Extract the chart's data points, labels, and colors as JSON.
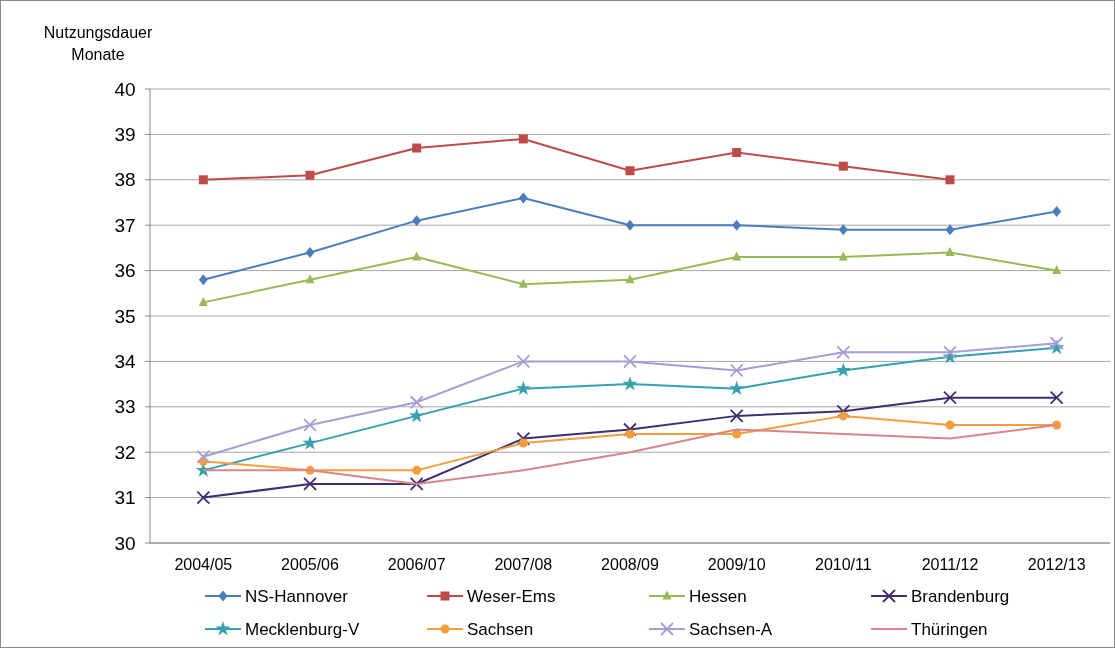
{
  "chart_data": {
    "type": "line",
    "ylabel": "Nutzungsdauer\nMonate",
    "categories": [
      "2004/05",
      "2005/06",
      "2006/07",
      "2007/08",
      "2008/09",
      "2009/10",
      "2010/11",
      "2011/12",
      "2012/13"
    ],
    "ylim": [
      30,
      40
    ],
    "yticks": [
      30,
      31,
      32,
      33,
      34,
      35,
      36,
      37,
      38,
      39,
      40
    ],
    "grid": "y",
    "legend": "bottom",
    "line_style": "solid",
    "series": [
      {
        "name": "NS-Hannover",
        "color": "#4a7ebb",
        "marker": "diamond",
        "values": [
          35.8,
          36.4,
          37.1,
          37.6,
          37.0,
          37.0,
          36.9,
          36.9,
          37.3
        ]
      },
      {
        "name": "Weser-Ems",
        "color": "#be4b48",
        "marker": "square",
        "values": [
          38.0,
          38.1,
          38.7,
          38.9,
          38.2,
          38.6,
          38.3,
          38.0,
          null
        ]
      },
      {
        "name": "Hessen",
        "color": "#98b954",
        "marker": "triangle",
        "values": [
          35.3,
          35.8,
          36.3,
          35.7,
          35.8,
          36.3,
          36.3,
          36.4,
          36.0
        ]
      },
      {
        "name": "Brandenburg",
        "color": "#3f2d72",
        "marker": "cross",
        "values": [
          31.0,
          31.3,
          31.3,
          32.3,
          32.5,
          32.8,
          32.9,
          33.2,
          33.2
        ]
      },
      {
        "name": "Mecklenburg-V",
        "color": "#35a0b0",
        "marker": "star",
        "values": [
          31.6,
          32.2,
          32.8,
          33.4,
          33.5,
          33.4,
          33.8,
          34.1,
          34.3
        ]
      },
      {
        "name": "Sachsen",
        "color": "#f59d3d",
        "marker": "circle",
        "values": [
          31.8,
          31.6,
          31.6,
          32.2,
          32.4,
          32.4,
          32.8,
          32.6,
          32.6
        ]
      },
      {
        "name": "Sachsen-A",
        "color": "#a39ed4",
        "marker": "cross",
        "values": [
          31.9,
          32.6,
          33.1,
          34.0,
          34.0,
          33.8,
          34.2,
          34.2,
          34.4
        ]
      },
      {
        "name": "Thüringen",
        "color": "#d9868a",
        "marker": "none",
        "values": [
          31.6,
          31.6,
          31.3,
          31.6,
          32.0,
          32.5,
          32.4,
          32.3,
          32.6
        ]
      }
    ]
  }
}
